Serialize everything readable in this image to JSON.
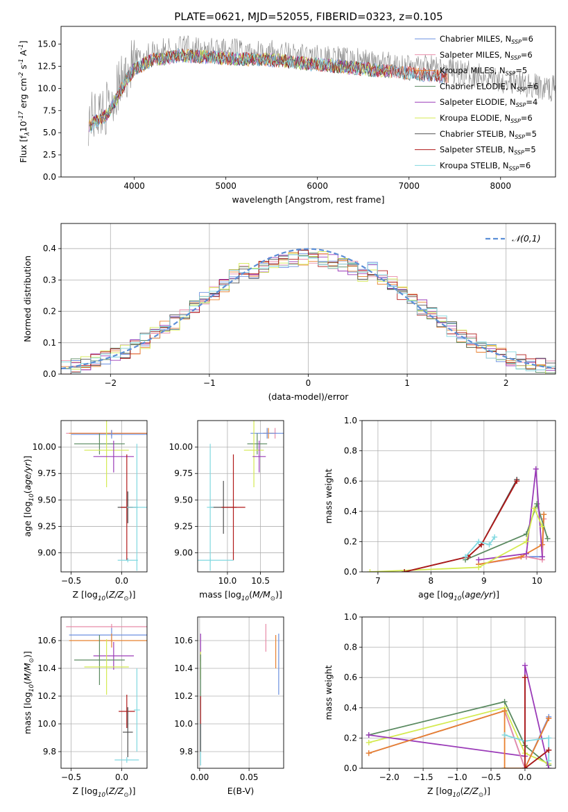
{
  "figure": {
    "title": "PLATE=0621, MJD=52055, FIBERID=0323, z=0.105"
  },
  "colors": {
    "Chabrier MILES": "#6a8fe0",
    "Salpeter MILES": "#e88aa8",
    "Kroupa MILES": "#e8802e",
    "Chabrier ELODIE": "#5a8a60",
    "Salpeter ELODIE": "#9a3ab8",
    "Kroupa ELODIE": "#d4ea50",
    "Chabrier STELIB": "#505050",
    "Salpeter STELIB": "#b01818",
    "Kroupa STELIB": "#80d8e0",
    "data": "#808080",
    "normal": "#5b8ed6"
  },
  "chart_data": [
    {
      "id": "spectrum",
      "type": "line",
      "xlabel": "wavelength [Angstrom, rest frame]",
      "ylabel": "Flux [f$_\\lambda$10$^{-17}$ erg cm$^{-2}$ s$^{-1}$ A$^{-1}$]",
      "xlim": [
        3200,
        8600
      ],
      "ylim": [
        0,
        17
      ],
      "xticks": [
        4000,
        5000,
        6000,
        7000,
        8000
      ],
      "yticks": [
        "0.0",
        "2.5",
        "5.0",
        "7.5",
        "10.0",
        "12.5",
        "15.0"
      ],
      "grid": false,
      "legend_position": "top-right",
      "legend": [
        {
          "name": "Chabrier MILES",
          "nssp": "6"
        },
        {
          "name": "Salpeter MILES",
          "nssp": "6"
        },
        {
          "name": "Kroupa MILES",
          "nssp": "5"
        },
        {
          "name": "Chabrier ELODIE",
          "nssp": "6"
        },
        {
          "name": "Salpeter ELODIE",
          "nssp": "4"
        },
        {
          "name": "Kroupa ELODIE",
          "nssp": "6"
        },
        {
          "name": "Chabrier STELIB",
          "nssp": "5"
        },
        {
          "name": "Salpeter STELIB",
          "nssp": "5"
        },
        {
          "name": "Kroupa STELIB",
          "nssp": "6"
        }
      ],
      "data_envelope": {
        "x": [
          3500,
          3600,
          3700,
          3800,
          3900,
          4000,
          4200,
          4500,
          5000,
          5500,
          6000,
          6500,
          7000,
          7300,
          7500,
          7800,
          8000,
          8200,
          8500
        ],
        "y": [
          6.5,
          7.2,
          7.8,
          9.5,
          11.5,
          13.0,
          14.0,
          14.5,
          14.2,
          14.0,
          13.5,
          13.0,
          12.5,
          12.2,
          11.8,
          11.5,
          11.0,
          10.5,
          10.0
        ]
      }
    },
    {
      "id": "residuals",
      "type": "line",
      "xlabel": "(data-model)/error",
      "ylabel": "Normed distribution",
      "xlim": [
        -2.5,
        2.5
      ],
      "ylim": [
        0,
        0.48
      ],
      "xticks": [
        "-2",
        "-1",
        "0",
        "1",
        "2"
      ],
      "yticks": [
        "0.0",
        "0.1",
        "0.2",
        "0.3",
        "0.4"
      ],
      "grid": true,
      "legend_position": "top-right",
      "legend": [
        "$\\mathcal{N}(0,1)$"
      ],
      "gaussian": {
        "mean": 0,
        "sigma": 1
      }
    },
    {
      "id": "age-vs-z",
      "type": "scatter",
      "xlabel": "Z [log$_{10}$($Z/Z_\\odot$)]",
      "ylabel": "age  [log$_{10}$($age/yr$)]",
      "xlim": [
        -0.6,
        0.25
      ],
      "ylim": [
        8.82,
        10.25
      ],
      "xticks": [
        "-0.5",
        "0.0"
      ],
      "yticks": [
        "9.00",
        "9.25",
        "9.50",
        "9.75",
        "10.00"
      ],
      "grid": true,
      "points": [
        {
          "model": "Salpeter MILES",
          "x": -0.1,
          "y": 10.13,
          "xerr": 0.45,
          "yerr": 0.03
        },
        {
          "model": "Kroupa MILES",
          "x": -0.1,
          "y": 10.13,
          "xerr": 0.42,
          "yerr": 0.03
        },
        {
          "model": "Chabrier MILES",
          "x": -0.1,
          "y": 10.12,
          "xerr": 0.4,
          "yerr": 0.04
        },
        {
          "model": "Chabrier ELODIE",
          "x": -0.22,
          "y": 10.03,
          "xerr": 0.25,
          "yerr": 0.1
        },
        {
          "model": "Kroupa ELODIE",
          "x": -0.15,
          "y": 9.97,
          "xerr": 0.22,
          "yerr": 0.35
        },
        {
          "model": "Salpeter ELODIE",
          "x": -0.08,
          "y": 9.91,
          "xerr": 0.2,
          "yerr": 0.15
        },
        {
          "model": "Chabrier STELIB",
          "x": 0.06,
          "y": 9.43,
          "xerr": 0.1,
          "yerr": 0.15
        },
        {
          "model": "Salpeter STELIB",
          "x": 0.05,
          "y": 9.43,
          "xerr": 0.06,
          "yerr": 0.5
        },
        {
          "model": "Kroupa STELIB",
          "x": 0.15,
          "y": 9.43,
          "xerr": 0.1,
          "yerr": 0.6
        },
        {
          "model": "Kroupa STELIB",
          "x": 0.06,
          "y": 8.93,
          "xerr": 0.1,
          "yerr": 0.02
        }
      ]
    },
    {
      "id": "age-vs-mass",
      "type": "scatter",
      "xlabel": "mass [log$_{10}$($M/M_\\odot$)]",
      "ylabel": "",
      "xlim": [
        9.55,
        10.85
      ],
      "ylim": [
        8.82,
        10.25
      ],
      "xticks": [
        "10.0",
        "10.5"
      ],
      "yticks": [
        "9.00",
        "9.25",
        "9.50",
        "9.75",
        "10.00"
      ],
      "grid": true,
      "points": [
        {
          "model": "Salpeter MILES",
          "x": 10.72,
          "y": 10.13,
          "xerr": 0.02,
          "yerr": 0.05
        },
        {
          "model": "Kroupa MILES",
          "x": 10.62,
          "y": 10.13,
          "xerr": 0.08,
          "yerr": 0.05
        },
        {
          "model": "Chabrier MILES",
          "x": 10.6,
          "y": 10.13,
          "xerr": 0.25,
          "yerr": 0.05
        },
        {
          "model": "Chabrier ELODIE",
          "x": 10.45,
          "y": 10.03,
          "xerr": 0.15,
          "yerr": 0.1
        },
        {
          "model": "Kroupa ELODIE",
          "x": 10.4,
          "y": 9.97,
          "xerr": 0.15,
          "yerr": 0.35
        },
        {
          "model": "Salpeter ELODIE",
          "x": 10.48,
          "y": 9.91,
          "xerr": 0.1,
          "yerr": 0.15
        },
        {
          "model": "Chabrier STELIB",
          "x": 9.94,
          "y": 9.43,
          "xerr": 0.2,
          "yerr": 0.25
        },
        {
          "model": "Salpeter STELIB",
          "x": 10.09,
          "y": 9.43,
          "xerr": 0.18,
          "yerr": 0.5
        },
        {
          "model": "Kroupa STELIB",
          "x": 9.74,
          "y": 9.43,
          "xerr": 0.05,
          "yerr": 0.6
        },
        {
          "model": "Kroupa STELIB",
          "x": 9.74,
          "y": 8.93,
          "xerr": 0.35,
          "yerr": 0.02
        }
      ]
    },
    {
      "id": "weight-vs-age",
      "type": "line",
      "xlabel": "age  [log$_{10}$($age/yr$)]",
      "ylabel": "mass weight",
      "xlim": [
        6.7,
        10.35
      ],
      "ylim": [
        0,
        1
      ],
      "xticks": [
        "7",
        "8",
        "9",
        "10"
      ],
      "yticks": [
        "0.0",
        "0.2",
        "0.4",
        "0.6",
        "0.8",
        "1.0"
      ],
      "grid": true,
      "series": [
        {
          "model": "Chabrier MILES",
          "x": [
            8.9,
            9.8,
            10.1,
            10.13
          ],
          "y": [
            0.05,
            0.1,
            0.1,
            0.38
          ]
        },
        {
          "model": "Salpeter MILES",
          "x": [
            8.9,
            9.8,
            10.1,
            10.13
          ],
          "y": [
            0.05,
            0.1,
            0.08,
            0.35
          ]
        },
        {
          "model": "Kroupa MILES",
          "x": [
            8.9,
            9.7,
            10.1,
            10.13
          ],
          "y": [
            0.05,
            0.1,
            0.18,
            0.38
          ]
        },
        {
          "model": "Chabrier ELODIE",
          "x": [
            8.65,
            9.8,
            10.0,
            10.2
          ],
          "y": [
            0.08,
            0.25,
            0.45,
            0.22
          ]
        },
        {
          "model": "Salpeter ELODIE",
          "x": [
            8.9,
            9.8,
            9.98,
            10.1
          ],
          "y": [
            0.08,
            0.12,
            0.68,
            0.1
          ]
        },
        {
          "model": "Kroupa ELODIE",
          "x": [
            6.85,
            8.9,
            9.8,
            9.95,
            10.1
          ],
          "y": [
            0.0,
            0.03,
            0.2,
            0.42,
            0.3
          ]
        },
        {
          "model": "Chabrier STELIB",
          "x": [
            7.5,
            8.7,
            8.95,
            9.62
          ],
          "y": [
            0.0,
            0.1,
            0.18,
            0.61
          ]
        },
        {
          "model": "Salpeter STELIB",
          "x": [
            7.5,
            8.7,
            8.95,
            9.62
          ],
          "y": [
            0.0,
            0.1,
            0.18,
            0.6
          ]
        },
        {
          "model": "Kroupa STELIB",
          "x": [
            8.65,
            8.9,
            9.1,
            9.2
          ],
          "y": [
            0.1,
            0.2,
            0.18,
            0.23
          ]
        }
      ]
    },
    {
      "id": "mass-vs-z",
      "type": "scatter",
      "xlabel": "Z [log$_{10}$($Z/Z_\\odot$)]",
      "ylabel": "mass [log$_{10}$($M/M_\\odot$)]",
      "xlim": [
        -0.6,
        0.25
      ],
      "ylim": [
        9.68,
        10.77
      ],
      "xticks": [
        "-0.5",
        "0.0"
      ],
      "yticks": [
        "9.8",
        "10.0",
        "10.2",
        "10.4",
        "10.6"
      ],
      "grid": true,
      "points": [
        {
          "model": "Salpeter MILES",
          "x": -0.1,
          "y": 10.7,
          "xerr": 0.45,
          "yerr": 0.02
        },
        {
          "model": "Chabrier MILES",
          "x": -0.1,
          "y": 10.64,
          "xerr": 0.42,
          "yerr": 0.05
        },
        {
          "model": "Kroupa MILES",
          "x": -0.1,
          "y": 10.6,
          "xerr": 0.42,
          "yerr": 0.05
        },
        {
          "model": "Salpeter ELODIE",
          "x": -0.08,
          "y": 10.49,
          "xerr": 0.2,
          "yerr": 0.1
        },
        {
          "model": "Chabrier ELODIE",
          "x": -0.22,
          "y": 10.46,
          "xerr": 0.25,
          "yerr": 0.18
        },
        {
          "model": "Kroupa ELODIE",
          "x": -0.15,
          "y": 10.41,
          "xerr": 0.22,
          "yerr": 0.2
        },
        {
          "model": "Salpeter STELIB",
          "x": 0.05,
          "y": 10.09,
          "xerr": 0.08,
          "yerr": 0.12
        },
        {
          "model": "Chabrier STELIB",
          "x": 0.06,
          "y": 9.94,
          "xerr": 0.05,
          "yerr": 0.18
        },
        {
          "model": "Kroupa STELIB",
          "x": 0.15,
          "y": 10.1,
          "xerr": 0.03,
          "yerr": 0.3
        },
        {
          "model": "Kroupa STELIB",
          "x": 0.05,
          "y": 9.74,
          "xerr": 0.12,
          "yerr": 0.02
        }
      ]
    },
    {
      "id": "mass-vs-ebv",
      "type": "scatter",
      "xlabel": "E(B-V)",
      "ylabel": "",
      "xlim": [
        -0.002,
        0.085
      ],
      "ylim": [
        9.68,
        10.77
      ],
      "xticks": [
        "0.00",
        "0.05"
      ],
      "yticks": [
        "9.8",
        "10.0",
        "10.2",
        "10.4",
        "10.6"
      ],
      "grid": true,
      "points": [
        {
          "model": "Salpeter MILES",
          "x": 0.067,
          "y": 10.62,
          "yerr": 0.1
        },
        {
          "model": "Kroupa MILES",
          "x": 0.077,
          "y": 10.52,
          "yerr": 0.12
        },
        {
          "model": "Chabrier MILES",
          "x": 0.08,
          "y": 10.43,
          "yerr": 0.22
        },
        {
          "model": "Salpeter ELODIE",
          "x": 0.001,
          "y": 10.55,
          "yerr": 0.1
        },
        {
          "model": "Kroupa ELODIE",
          "x": 0.001,
          "y": 10.42,
          "yerr": 0.1
        },
        {
          "model": "Chabrier ELODIE",
          "x": 0.001,
          "y": 10.3,
          "yerr": 0.2
        },
        {
          "model": "Kroupa STELIB",
          "x": 0.001,
          "y": 9.95,
          "yerr": 0.25
        },
        {
          "model": "Salpeter STELIB",
          "x": 0.001,
          "y": 10.1,
          "yerr": 0.1
        },
        {
          "model": "Chabrier STELIB",
          "x": 0.001,
          "y": 9.9,
          "yerr": 0.1
        }
      ]
    },
    {
      "id": "weight-vs-z",
      "type": "line",
      "xlabel": "Z [log$_{10}$($Z/Z_\\odot$)]",
      "ylabel": "mass weight",
      "xlim": [
        -2.4,
        0.45
      ],
      "ylim": [
        0,
        1
      ],
      "xticks": [
        "-2.0",
        "-1.5",
        "-1.0",
        "-0.5",
        "0.0"
      ],
      "yticks": [
        "0.0",
        "0.2",
        "0.4",
        "0.6",
        "0.8",
        "1.0"
      ],
      "grid": true,
      "series": [
        {
          "model": "Chabrier ELODIE",
          "x": [
            -2.3,
            -0.3,
            0.0,
            0.35
          ],
          "y": [
            0.22,
            0.44,
            0.15,
            0.02
          ]
        },
        {
          "model": "Kroupa ELODIE",
          "x": [
            -2.3,
            -0.3,
            0.0,
            0.35
          ],
          "y": [
            0.17,
            0.4,
            0.1,
            0.03
          ]
        },
        {
          "model": "Salpeter ELODIE",
          "x": [
            -2.3,
            0.0,
            0.0,
            0.35
          ],
          "y": [
            0.22,
            0.08,
            0.68,
            0.0
          ]
        },
        {
          "model": "Chabrier MILES",
          "x": [
            -2.3,
            -0.3,
            0.0,
            0.35
          ],
          "y": [
            0.1,
            0.38,
            0.0,
            0.34
          ]
        },
        {
          "model": "Salpeter MILES",
          "x": [
            -2.3,
            -0.3,
            0.0,
            0.35
          ],
          "y": [
            0.1,
            0.38,
            0.0,
            0.33
          ]
        },
        {
          "model": "Kroupa MILES",
          "x": [
            -2.3,
            -0.3,
            -0.3,
            0.0,
            0.35
          ],
          "y": [
            0.1,
            0.38,
            0.0,
            0.0,
            0.33
          ]
        },
        {
          "model": "Kroupa STELIB",
          "x": [
            -0.3,
            0.0,
            0.35,
            0.35
          ],
          "y": [
            0.22,
            0.18,
            0.2,
            0.05
          ]
        },
        {
          "model": "Chabrier STELIB",
          "x": [
            0.0,
            0.0,
            0.35
          ],
          "y": [
            0.6,
            0.0,
            0.12
          ]
        },
        {
          "model": "Salpeter STELIB",
          "x": [
            0.0,
            0.0,
            0.35
          ],
          "y": [
            0.6,
            0.0,
            0.12
          ]
        }
      ]
    }
  ]
}
